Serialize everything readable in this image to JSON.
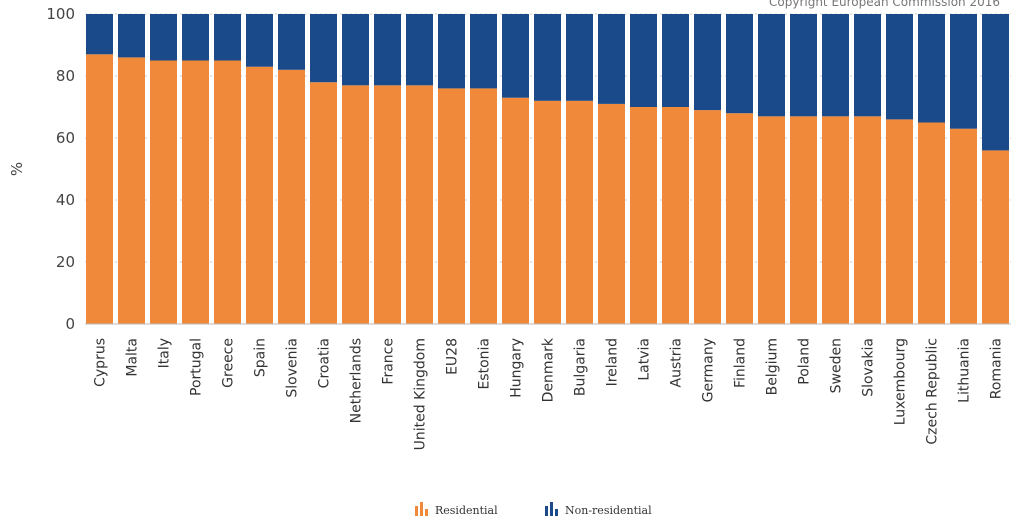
{
  "copyright": "Copyright European Commission 2016",
  "chart_data": {
    "type": "bar",
    "stacked": true,
    "ylabel": "%",
    "ylim": [
      0,
      100
    ],
    "yticks": [
      0,
      20,
      40,
      60,
      80,
      100
    ],
    "grid": true,
    "legend_position": "bottom",
    "categories": [
      "Cyprus",
      "Malta",
      "Italy",
      "Portugal",
      "Greece",
      "Spain",
      "Slovenia",
      "Croatia",
      "Netherlands",
      "France",
      "United Kingdom",
      "EU28",
      "Estonia",
      "Hungary",
      "Denmark",
      "Bulgaria",
      "Ireland",
      "Latvia",
      "Austria",
      "Germany",
      "Finland",
      "Belgium",
      "Poland",
      "Sweden",
      "Slovakia",
      "Luxembourg",
      "Czech Republic",
      "Lithuania",
      "Romania"
    ],
    "series": [
      {
        "name": "Residential",
        "color": "#f08a3a",
        "values": [
          87,
          86,
          85,
          85,
          85,
          83,
          82,
          78,
          77,
          77,
          77,
          76,
          76,
          73,
          72,
          72,
          71,
          70,
          70,
          69,
          68,
          67,
          67,
          67,
          67,
          66,
          65,
          63,
          56
        ]
      },
      {
        "name": "Non-residential",
        "color": "#1a4a8a",
        "values": [
          13,
          14,
          15,
          15,
          15,
          17,
          18,
          22,
          23,
          23,
          23,
          24,
          24,
          27,
          28,
          28,
          29,
          30,
          30,
          31,
          32,
          33,
          33,
          33,
          33,
          34,
          35,
          37,
          44
        ]
      }
    ]
  }
}
